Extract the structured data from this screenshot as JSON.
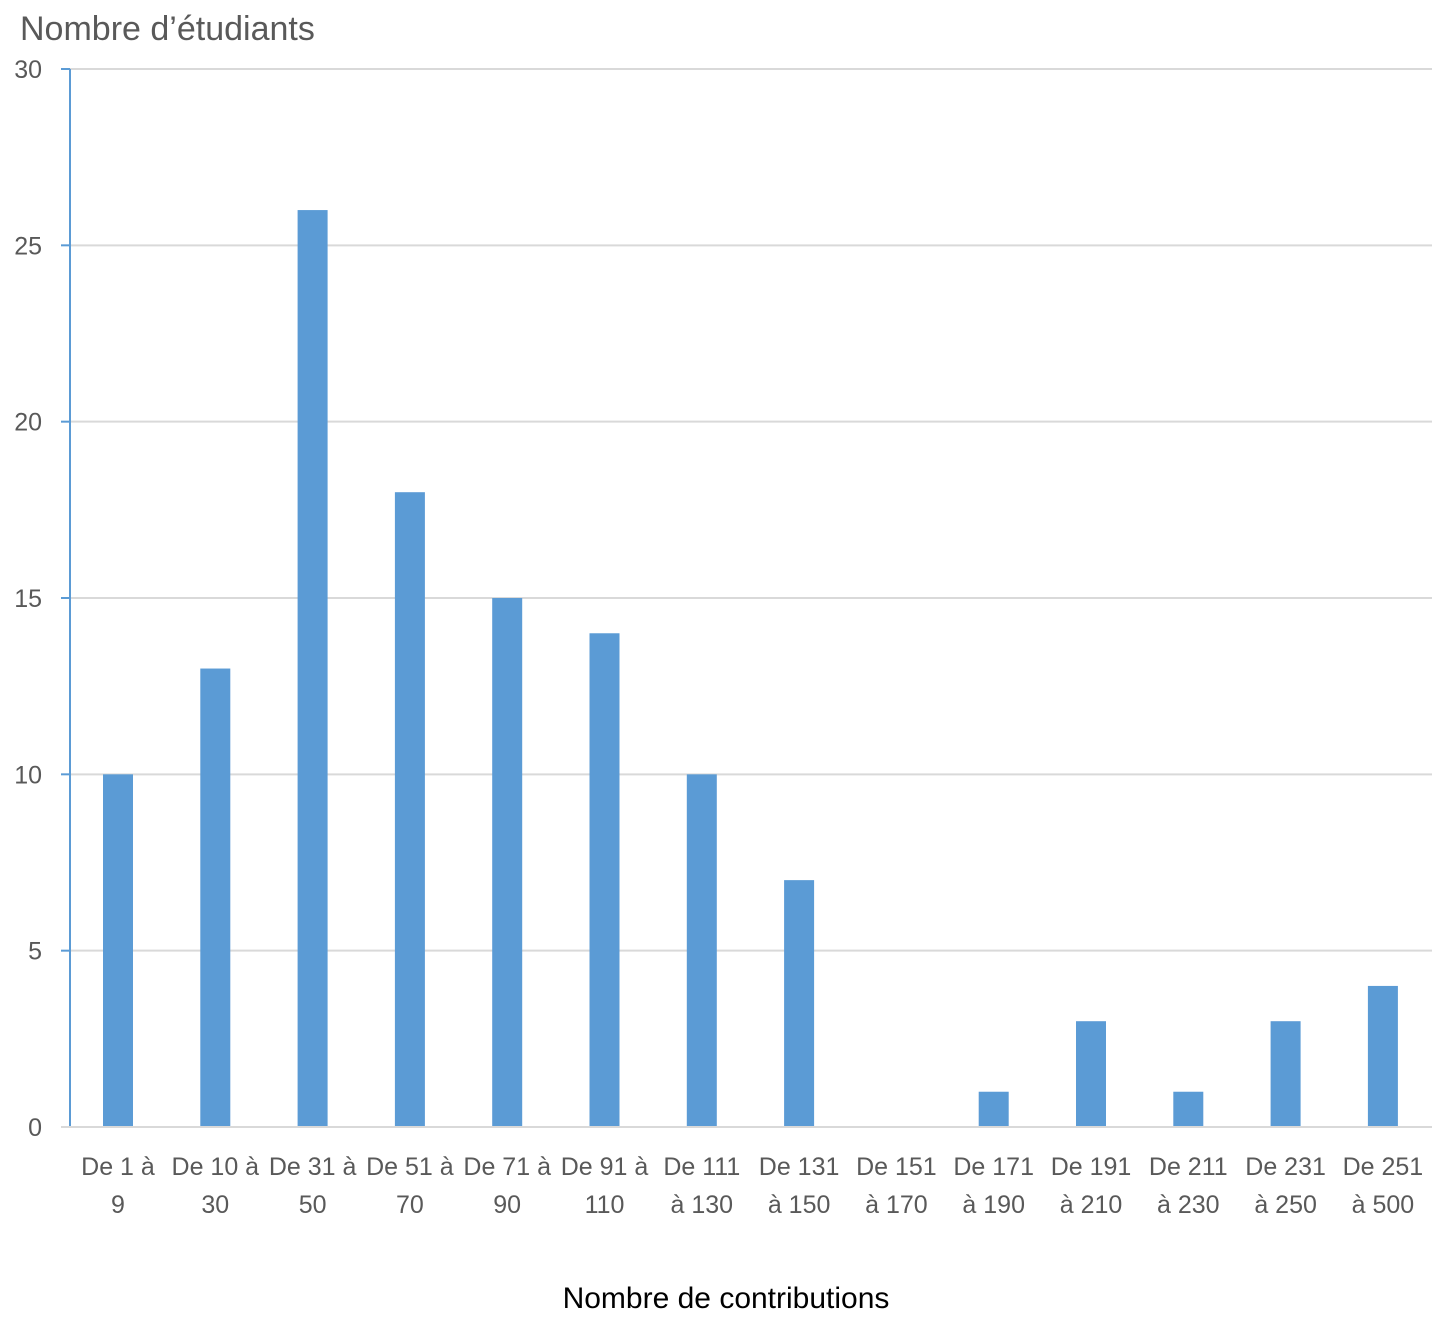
{
  "chart_data": {
    "type": "bar",
    "ylabel": "Nombre d’étudiants",
    "xlabel": "Nombre de contributions",
    "ylim": [
      0,
      30
    ],
    "yticks": [
      0,
      5,
      10,
      15,
      20,
      25,
      30
    ],
    "grid": true,
    "categories": [
      [
        "De 1 à",
        "9"
      ],
      [
        "De 10 à",
        "30"
      ],
      [
        "De 31 à",
        "50"
      ],
      [
        "De 51 à",
        "70"
      ],
      [
        "De 71 à",
        "90"
      ],
      [
        "De 91 à",
        "110"
      ],
      [
        "De 111",
        "à 130"
      ],
      [
        "De 131",
        "à 150"
      ],
      [
        "De 151",
        "à 170"
      ],
      [
        "De 171",
        "à 190"
      ],
      [
        "De 191",
        "à 210"
      ],
      [
        "De 211",
        "à 230"
      ],
      [
        "De 231",
        "à 250"
      ],
      [
        "De 251",
        "à 500"
      ]
    ],
    "values": [
      10,
      13,
      26,
      18,
      15,
      14,
      10,
      7,
      0,
      1,
      3,
      1,
      3,
      4
    ],
    "colors": {
      "bar": "#5b9bd5",
      "axis": "#5b9bd5",
      "grid": "#d9d9d9",
      "tick_text": "#595959"
    }
  }
}
